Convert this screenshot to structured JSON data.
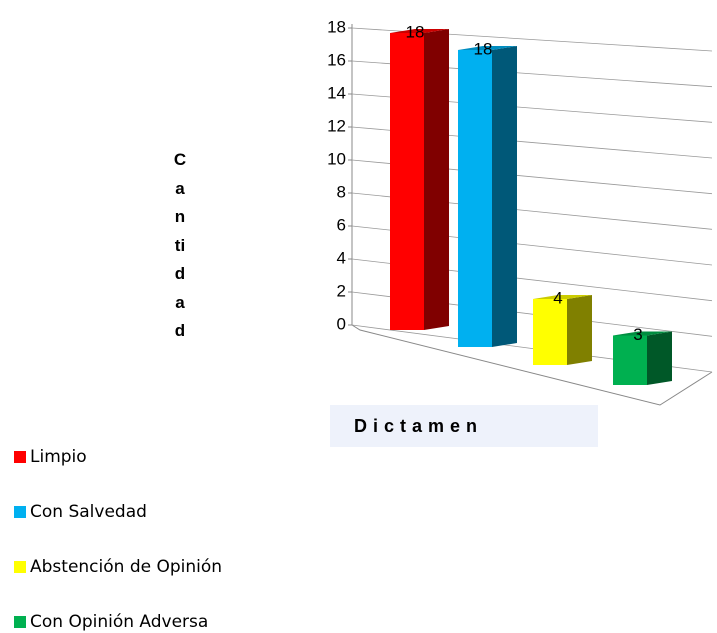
{
  "chart_data": {
    "type": "bar",
    "y_label": "Cantidad",
    "x_label": "Dictamen",
    "ylim": [
      0,
      18
    ],
    "yticks": [
      0,
      2,
      4,
      6,
      8,
      10,
      12,
      14,
      16,
      18
    ],
    "grid": true,
    "legend": "bottom-left",
    "series": [
      {
        "name": "Limpio",
        "color": "#ff0000",
        "values": [
          18
        ]
      },
      {
        "name": "Con Salvedad",
        "color": "#00b0f0",
        "values": [
          18
        ]
      },
      {
        "name": "Abstención de Opinión",
        "color": "#ffff00",
        "values": [
          4
        ]
      },
      {
        "name": "Con Opinión Adversa",
        "color": "#00b050",
        "values": [
          3
        ]
      }
    ]
  }
}
